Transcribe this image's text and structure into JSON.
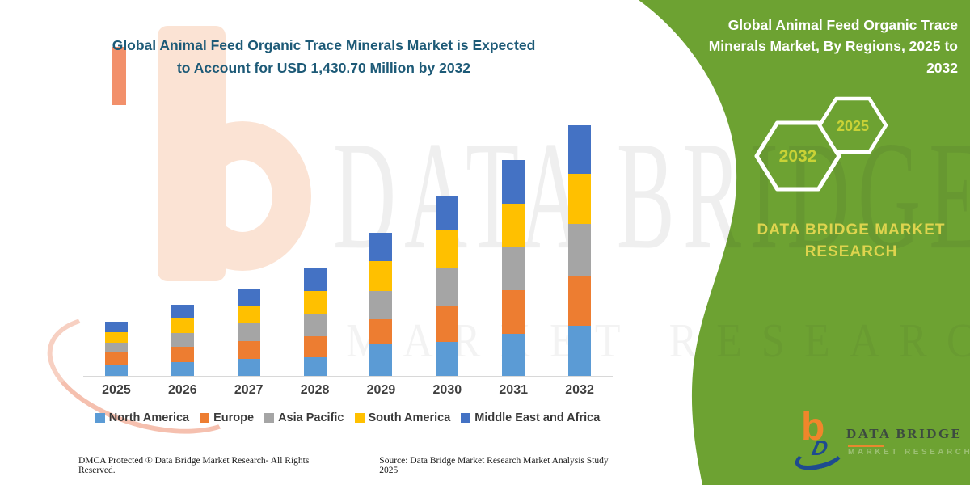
{
  "left_panel": {
    "title_lines": [
      "Global Animal Feed Organic Trace Minerals Market is Expected",
      "to Account for USD 1,430.70 Million by 2032"
    ],
    "title_color": "#1d5a77",
    "footer": {
      "dmca": "DMCA Protected ® Data Bridge Market Research-  All Rights Reserved.",
      "source": "Source: Data Bridge Market Research  Market Analysis Study 2025"
    }
  },
  "green_panel": {
    "background_color": "#6da232",
    "title_lines": [
      "Global Animal Feed Organic Trace",
      "Minerals Market, By Regions, 2025 to",
      "2032"
    ],
    "hexagons": [
      {
        "label": "2032"
      },
      {
        "label": "2025"
      }
    ],
    "hexagon_label_color": "#c9d236",
    "brand_text": "DATA BRIDGE MARKET RESEARCH",
    "brand_text_color": "#ded44e",
    "logo": {
      "b_mark": "b",
      "d_mark": "D",
      "text": "DATA BRIDGE",
      "subtext": "MARKET RESEARCH",
      "b_color": "#f0862b",
      "swoosh_color": "#1e4b8f"
    }
  },
  "watermarks": {
    "big_text": "DATA BRIDGE",
    "small_text": "MARKET RESEARCH"
  },
  "chart_data": {
    "type": "bar",
    "stacked": true,
    "title": "Global Animal Feed Organic Trace Minerals Market, By Regions, 2025 to 2032",
    "unit": "USD Million",
    "categories": [
      "2025",
      "2026",
      "2027",
      "2028",
      "2029",
      "2030",
      "2031",
      "2032"
    ],
    "series": [
      {
        "name": "North America",
        "color": "#5B9BD5",
        "values": [
          66,
          79,
          96,
          105,
          178,
          194,
          240,
          287
        ]
      },
      {
        "name": "Europe",
        "color": "#ED7D31",
        "values": [
          70,
          88,
          101,
          120,
          147,
          209,
          248,
          279
        ]
      },
      {
        "name": "Asia Pacific",
        "color": "#A5A5A5",
        "values": [
          54,
          78,
          108,
          129,
          159,
          217,
          248,
          301
        ]
      },
      {
        "name": "South America",
        "color": "#FFC000",
        "values": [
          57,
          85,
          93,
          130,
          173,
          217,
          248,
          286
        ]
      },
      {
        "name": "Middle East and Africa",
        "color": "#4472C4",
        "values": [
          62,
          78,
          101,
          128,
          159,
          186,
          251,
          277
        ]
      }
    ],
    "totals": [
      309,
      408,
      499,
      612,
      816,
      1023,
      1235,
      1430.7
    ],
    "highlight_total_2032": 1430.7,
    "ylim": [
      0,
      1430.7
    ],
    "gridlines": false,
    "legend_position": "bottom",
    "xlabel": "",
    "ylabel": ""
  }
}
